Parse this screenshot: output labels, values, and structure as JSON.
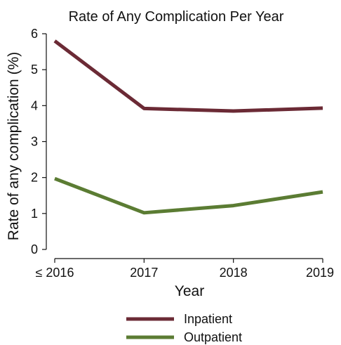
{
  "chart_data": {
    "type": "line",
    "title": "Rate of Any Complication Per Year",
    "xlabel": "Year",
    "ylabel": "Rate of any complication (%)",
    "categories": [
      "≤ 2016",
      "2017",
      "2018",
      "2019"
    ],
    "ylim": [
      0,
      6
    ],
    "yticks": [
      0,
      1,
      2,
      3,
      4,
      5,
      6
    ],
    "grid": false,
    "legend_position": "bottom",
    "series": [
      {
        "name": "Inpatient",
        "values": [
          5.8,
          3.92,
          3.85,
          3.93
        ],
        "color": "#6b2a35"
      },
      {
        "name": "Outpatient",
        "values": [
          1.97,
          1.02,
          1.22,
          1.6
        ],
        "color": "#5b7c33"
      }
    ]
  }
}
